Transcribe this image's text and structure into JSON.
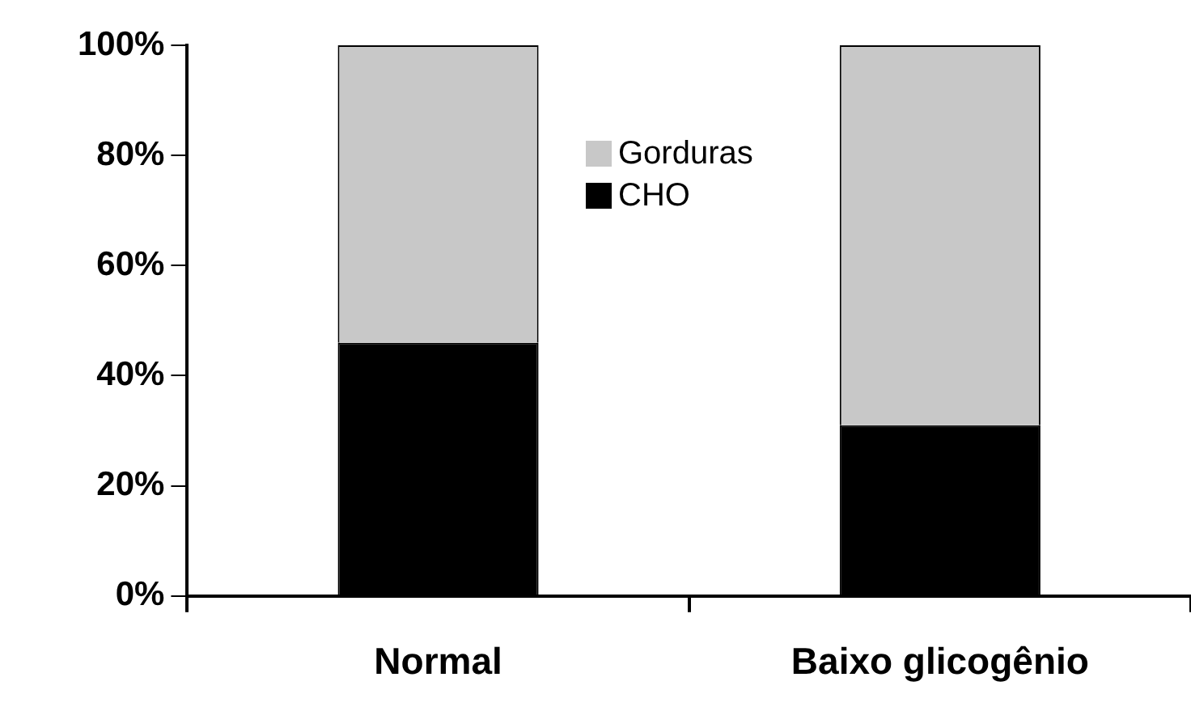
{
  "chart_data": {
    "type": "bar",
    "stacked": true,
    "categories": [
      "Normal",
      "Baixo glicogênio"
    ],
    "series": [
      {
        "name": "CHO",
        "color": "#000000",
        "values": [
          46,
          31
        ]
      },
      {
        "name": "Gorduras",
        "color": "#c8c8c8",
        "values": [
          54,
          69
        ]
      }
    ],
    "ylim": [
      0,
      100
    ],
    "yticks": [
      {
        "value": 0,
        "label": "0%"
      },
      {
        "value": 20,
        "label": "20%"
      },
      {
        "value": 40,
        "label": "40%"
      },
      {
        "value": 60,
        "label": "60%"
      },
      {
        "value": 80,
        "label": "80%"
      },
      {
        "value": 100,
        "label": "100%"
      }
    ],
    "grid": false,
    "legend": "top"
  }
}
